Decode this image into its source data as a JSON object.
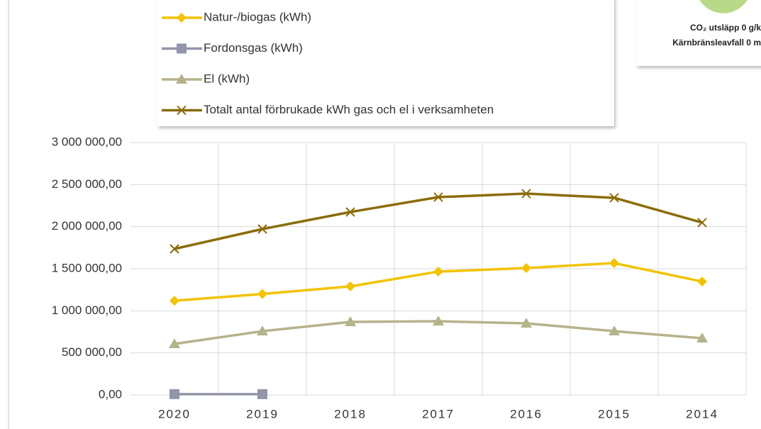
{
  "chart_data": {
    "type": "line",
    "categories": [
      "2020",
      "2019",
      "2018",
      "2017",
      "2016",
      "2015",
      "2014"
    ],
    "series": [
      {
        "name": "Natur-/biogas (kWh)",
        "color": "#f2c300",
        "marker": "diamond",
        "values": [
          1120000,
          1200000,
          1290000,
          1466000,
          1508000,
          1567000,
          1348000
        ]
      },
      {
        "name": "Fordonsgas (kWh)",
        "color": "#9294aa",
        "marker": "square",
        "values": [
          10000,
          10000,
          null,
          null,
          null,
          null,
          null
        ]
      },
      {
        "name": "El (kWh)",
        "color": "#b5b38a",
        "marker": "triangle",
        "values": [
          607000,
          758000,
          868000,
          876000,
          851000,
          758000,
          674000
        ]
      },
      {
        "name": "Totalt antal förbrukade kWh gas och el i verksamheten",
        "color": "#8b6c0a",
        "marker": "x",
        "values": [
          1736000,
          1972000,
          2174000,
          2351000,
          2393000,
          2343000,
          2048000
        ]
      }
    ],
    "ylim": [
      0,
      3000000
    ],
    "yticks": [
      {
        "value": 0,
        "label": "0,00"
      },
      {
        "value": 500000,
        "label": "500 000,00"
      },
      {
        "value": 1000000,
        "label": "1 000 000,00"
      },
      {
        "value": 1500000,
        "label": "1 500 000,00"
      },
      {
        "value": 2000000,
        "label": "2 000 000,00"
      },
      {
        "value": 2500000,
        "label": "2 500 000,00"
      },
      {
        "value": 3000000,
        "label": "3 000 000,00"
      }
    ],
    "grid": true,
    "annotations": [
      "CO₂ utsläpp 0 g/k",
      "Kärnbränsleavfall 0 m"
    ]
  }
}
